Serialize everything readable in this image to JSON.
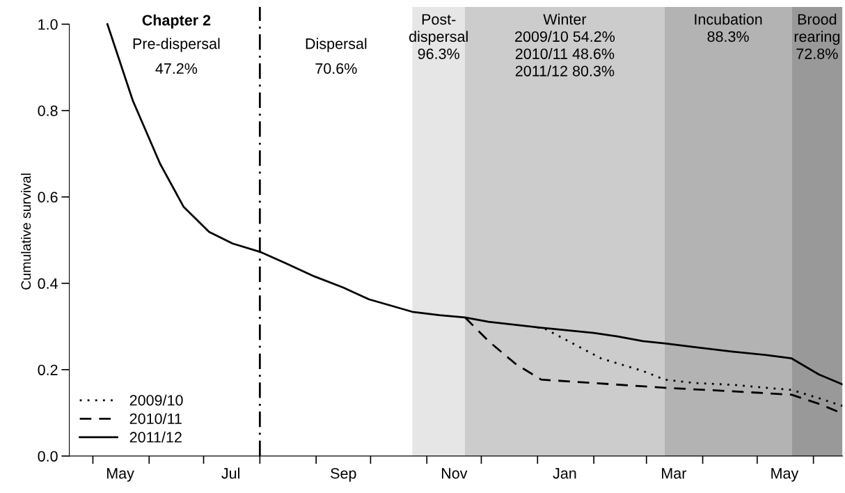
{
  "chart_data": {
    "type": "line",
    "ylabel": "Cumulative survival",
    "xlim": [
      "2011-04-18",
      "2012-06-17"
    ],
    "ylim": [
      0,
      1.04
    ],
    "xticks": [
      {
        "value": "2011-05-01",
        "label": null
      },
      {
        "value": "2011-05-16",
        "label": "May"
      },
      {
        "value": "2011-06-01",
        "label": null
      },
      {
        "value": "2011-07-01",
        "label": null
      },
      {
        "value": "2011-07-16",
        "label": "Jul"
      },
      {
        "value": "2011-08-01",
        "label": null
      },
      {
        "value": "2011-09-01",
        "label": null
      },
      {
        "value": "2011-09-16",
        "label": "Sep"
      },
      {
        "value": "2011-10-01",
        "label": null
      },
      {
        "value": "2011-11-01",
        "label": null
      },
      {
        "value": "2011-11-16",
        "label": "Nov"
      },
      {
        "value": "2011-12-01",
        "label": null
      },
      {
        "value": "2012-01-01",
        "label": null
      },
      {
        "value": "2012-01-16",
        "label": "Jan"
      },
      {
        "value": "2012-02-01",
        "label": null
      },
      {
        "value": "2012-03-01",
        "label": null
      },
      {
        "value": "2012-03-16",
        "label": "Mar"
      },
      {
        "value": "2012-04-01",
        "label": null
      },
      {
        "value": "2012-05-01",
        "label": null
      },
      {
        "value": "2012-05-16",
        "label": "May"
      },
      {
        "value": "2012-06-01",
        "label": null
      }
    ],
    "yticks": [
      {
        "value": 0,
        "label": "0.0"
      },
      {
        "value": 0.2,
        "label": "0.2"
      },
      {
        "value": 0.4,
        "label": "0.4"
      },
      {
        "value": 0.6,
        "label": "0.6"
      },
      {
        "value": 0.8,
        "label": "0.8"
      },
      {
        "value": 1.0,
        "label": "1.0"
      }
    ],
    "legend": "bottom left",
    "series": [
      {
        "name": "2009/10",
        "color": "#000000",
        "line_style": "dotted",
        "x": [
          "2012-01-01",
          "2012-01-05",
          "2012-01-18",
          "2012-02-05",
          "2012-02-28",
          "2012-03-11",
          "2012-03-28",
          "2012-04-17",
          "2012-05-20",
          "2012-06-04",
          "2012-06-17"
        ],
        "values": [
          0.298,
          0.295,
          0.266,
          0.226,
          0.197,
          0.177,
          0.169,
          0.165,
          0.153,
          0.134,
          0.116
        ]
      },
      {
        "name": "2010/11",
        "color": "#000000",
        "line_style": "dashed",
        "x": [
          "2011-11-22",
          "2011-12-05",
          "2011-12-20",
          "2012-01-03",
          "2012-02-01",
          "2012-03-11",
          "2012-04-17",
          "2012-05-20",
          "2012-06-04",
          "2012-06-15"
        ],
        "values": [
          0.321,
          0.266,
          0.213,
          0.177,
          0.169,
          0.158,
          0.15,
          0.142,
          0.121,
          0.102
        ]
      },
      {
        "name": "2011/12",
        "color": "#000000",
        "line_style": "solid",
        "x": [
          "2011-05-09",
          "2011-05-23",
          "2011-06-07",
          "2011-06-20",
          "2011-07-04",
          "2011-07-17",
          "2011-08-01",
          "2011-08-15",
          "2011-08-31",
          "2011-09-16",
          "2011-09-30",
          "2011-10-24",
          "2011-11-08",
          "2011-11-22",
          "2011-12-05",
          "2012-01-01",
          "2012-02-01",
          "2012-02-14",
          "2012-02-28",
          "2012-03-11",
          "2012-03-28",
          "2012-04-17",
          "2012-05-06",
          "2012-05-20",
          "2012-06-04",
          "2012-06-17"
        ],
        "values": [
          1.0,
          0.823,
          0.677,
          0.577,
          0.519,
          0.492,
          0.473,
          0.447,
          0.416,
          0.39,
          0.363,
          0.334,
          0.326,
          0.321,
          0.311,
          0.298,
          0.285,
          0.277,
          0.266,
          0.261,
          0.252,
          0.242,
          0.234,
          0.226,
          0.189,
          0.166
        ]
      }
    ],
    "ref_lines": [
      {
        "axis": "x",
        "value": "2011-08-01",
        "line_style": "dashdot",
        "color": "#000000"
      }
    ],
    "bands": [
      {
        "axis": "x",
        "from": "2011-10-24",
        "to": "2011-11-22",
        "label": "Post-\ndispersal\n96.3%",
        "color": "#e6e6e6"
      },
      {
        "axis": "x",
        "from": "2011-11-22",
        "to": "2012-03-11",
        "label": "Winter\n2009/10 54.2%\n2010/11 48.6%\n2011/12 80.3%",
        "color": "#cccccc"
      },
      {
        "axis": "x",
        "from": "2012-03-11",
        "to": "2012-05-20",
        "label": "Incubation\n88.3%",
        "color": "#b3b3b3"
      },
      {
        "axis": "x",
        "from": "2012-05-20",
        "to": "2012-06-17",
        "label": "Brood\nrearing\n72.8%",
        "color": "#999999"
      }
    ],
    "annotations": [
      "Chapter 2",
      "Pre-dispersal\n47.2%",
      "Dispersal\n70.6%"
    ]
  }
}
